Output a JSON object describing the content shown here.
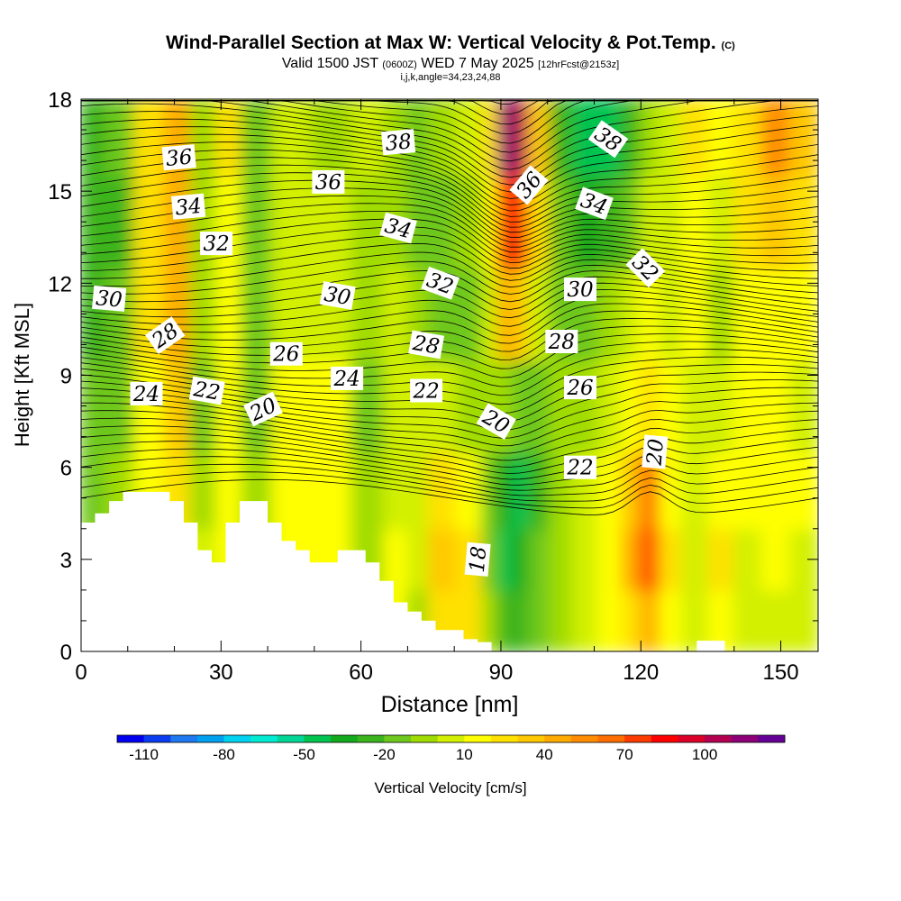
{
  "title": {
    "main": "Wind-Parallel Section at Max W: Vertical Velocity & Pot.Temp.",
    "copyright": "(C)",
    "valid_prefix": "Valid 1500 JST",
    "valid_utc": "(0600Z)",
    "valid_date": "WED 7 May 2025",
    "forecast": "[12hrFcst@2153z]",
    "indices": "i,j,k,angle=34,23,24,88"
  },
  "chart_data": {
    "type": "heatmap",
    "xlabel": "Distance [nm]",
    "ylabel": "Height [Kft MSL]",
    "xlim": [
      0,
      158
    ],
    "ylim": [
      0,
      18
    ],
    "x_ticks": [
      0,
      30,
      60,
      90,
      120,
      150
    ],
    "y_ticks": [
      0,
      3,
      6,
      9,
      12,
      15,
      18
    ],
    "colorbar": {
      "label": "Vertical Velocity [cm/s]",
      "tick_labels": [
        -110,
        -80,
        -50,
        -20,
        10,
        40,
        70,
        100
      ],
      "colors": [
        "#0000f0",
        "#0a3cf0",
        "#1e78f0",
        "#00a0f0",
        "#00d2f0",
        "#00ebd2",
        "#00d796",
        "#00c350",
        "#14aa1e",
        "#3cb41e",
        "#6ec81e",
        "#a0dc00",
        "#d2f000",
        "#ffff00",
        "#ffe100",
        "#ffc800",
        "#ffaa00",
        "#ff8c00",
        "#ff6e00",
        "#ff3c00",
        "#ff0000",
        "#dc0028",
        "#b40050",
        "#8c0078",
        "#640096"
      ]
    },
    "w_field": [
      {
        "x": 3,
        "values": [
          -10,
          -10,
          -15,
          -20,
          -25,
          -30,
          -30
        ]
      },
      {
        "x": 8,
        "values": [
          -5,
          -5,
          -10,
          -15,
          -20,
          -25,
          -20
        ]
      },
      {
        "x": 15,
        "values": [
          5,
          5,
          10,
          15,
          20,
          25,
          25
        ]
      },
      {
        "x": 21,
        "values": [
          5,
          10,
          20,
          30,
          40,
          45,
          40
        ]
      },
      {
        "x": 26,
        "values": [
          0,
          0,
          -10,
          -15,
          -10,
          -10,
          -5
        ]
      },
      {
        "x": 32,
        "values": [
          15,
          15,
          10,
          10,
          10,
          15,
          20
        ]
      },
      {
        "x": 37,
        "values": [
          -5,
          -5,
          -10,
          -15,
          -20,
          -20,
          -15
        ]
      },
      {
        "x": 45,
        "values": [
          5,
          10,
          10,
          10,
          5,
          5,
          5
        ]
      },
      {
        "x": 54,
        "values": [
          10,
          15,
          15,
          10,
          5,
          0,
          -5
        ]
      },
      {
        "x": 62,
        "values": [
          0,
          -5,
          -10,
          -15,
          -10,
          -5,
          0
        ]
      },
      {
        "x": 68,
        "values": [
          10,
          10,
          5,
          5,
          0,
          -5,
          -10
        ]
      },
      {
        "x": 72,
        "values": [
          -5,
          0,
          5,
          0,
          -5,
          -15,
          -20
        ]
      },
      {
        "x": 77,
        "values": [
          20,
          30,
          25,
          5,
          -15,
          -20,
          -10
        ]
      },
      {
        "x": 84,
        "values": [
          20,
          25,
          10,
          -5,
          -20,
          -10,
          0
        ]
      },
      {
        "x": 88,
        "values": [
          -10,
          -20,
          -15,
          -5,
          5,
          10,
          20
        ]
      },
      {
        "x": 91,
        "values": [
          -30,
          -45,
          -40,
          -10,
          40,
          80,
          110
        ]
      },
      {
        "x": 94,
        "values": [
          -25,
          -40,
          -50,
          -20,
          30,
          70,
          100
        ]
      },
      {
        "x": 98,
        "values": [
          -15,
          -20,
          -25,
          -15,
          0,
          20,
          30
        ]
      },
      {
        "x": 103,
        "values": [
          -5,
          -10,
          -10,
          -10,
          -15,
          -20,
          -30
        ]
      },
      {
        "x": 108,
        "values": [
          5,
          5,
          0,
          -5,
          -20,
          -40,
          -50
        ]
      },
      {
        "x": 114,
        "values": [
          10,
          15,
          10,
          5,
          -10,
          -30,
          -45
        ]
      },
      {
        "x": 118,
        "values": [
          20,
          40,
          30,
          10,
          5,
          -15,
          -25
        ]
      },
      {
        "x": 122,
        "values": [
          40,
          70,
          60,
          20,
          10,
          0,
          -10
        ]
      },
      {
        "x": 126,
        "values": [
          15,
          25,
          15,
          10,
          5,
          5,
          5
        ]
      },
      {
        "x": 132,
        "values": [
          5,
          5,
          5,
          5,
          10,
          15,
          20
        ]
      },
      {
        "x": 137,
        "values": [
          15,
          20,
          10,
          0,
          -5,
          5,
          15
        ]
      },
      {
        "x": 143,
        "values": [
          5,
          5,
          10,
          10,
          10,
          20,
          25
        ]
      },
      {
        "x": 149,
        "values": [
          5,
          10,
          15,
          10,
          15,
          35,
          50
        ]
      },
      {
        "x": 155,
        "values": [
          0,
          5,
          10,
          5,
          10,
          20,
          30
        ]
      }
    ],
    "w_field_heights": [
      1,
      3,
      5,
      8,
      11,
      14,
      17
    ],
    "terrain": [
      [
        0,
        4.2
      ],
      [
        3,
        4.2
      ],
      [
        3,
        4.5
      ],
      [
        6,
        4.5
      ],
      [
        6,
        4.9
      ],
      [
        9,
        4.9
      ],
      [
        9,
        5.2
      ],
      [
        19,
        5.2
      ],
      [
        19,
        4.9
      ],
      [
        22,
        4.9
      ],
      [
        22,
        4.2
      ],
      [
        25,
        4.2
      ],
      [
        25,
        3.3
      ],
      [
        28,
        3.3
      ],
      [
        28,
        2.9
      ],
      [
        31,
        2.9
      ],
      [
        31,
        4.2
      ],
      [
        34,
        4.2
      ],
      [
        34,
        4.9
      ],
      [
        40,
        4.9
      ],
      [
        40,
        4.2
      ],
      [
        43,
        4.2
      ],
      [
        43,
        3.6
      ],
      [
        46,
        3.6
      ],
      [
        46,
        3.3
      ],
      [
        49,
        3.3
      ],
      [
        49,
        2.9
      ],
      [
        55,
        2.9
      ],
      [
        55,
        3.3
      ],
      [
        61,
        3.3
      ],
      [
        61,
        2.9
      ],
      [
        64,
        2.9
      ],
      [
        64,
        2.3
      ],
      [
        67,
        2.3
      ],
      [
        67,
        1.6
      ],
      [
        70,
        1.6
      ],
      [
        70,
        1.3
      ],
      [
        73,
        1.3
      ],
      [
        73,
        1.0
      ],
      [
        76,
        1.0
      ],
      [
        76,
        0.7
      ],
      [
        82,
        0.7
      ],
      [
        82,
        0.4
      ],
      [
        85,
        0.4
      ],
      [
        85,
        0.3
      ],
      [
        88,
        0.3
      ],
      [
        88,
        0.0
      ]
    ],
    "terrain_right": [
      [
        132,
        0.0
      ],
      [
        132,
        0.35
      ],
      [
        138,
        0.35
      ],
      [
        138,
        0.0
      ]
    ],
    "theta_labels": [
      {
        "text": "36",
        "x": 21,
        "y": 16.1,
        "angle": -5
      },
      {
        "text": "34",
        "x": 23,
        "y": 14.5,
        "angle": -5
      },
      {
        "text": "32",
        "x": 29,
        "y": 13.3,
        "angle": 0
      },
      {
        "text": "30",
        "x": 6,
        "y": 11.5,
        "angle": 5
      },
      {
        "text": "28",
        "x": 18,
        "y": 10.3,
        "angle": -35
      },
      {
        "text": "24",
        "x": 14,
        "y": 8.4,
        "angle": 0
      },
      {
        "text": "22",
        "x": 27,
        "y": 8.5,
        "angle": 10
      },
      {
        "text": "20",
        "x": 39,
        "y": 7.9,
        "angle": -25
      },
      {
        "text": "26",
        "x": 44,
        "y": 9.7,
        "angle": 0
      },
      {
        "text": "24",
        "x": 57,
        "y": 8.9,
        "angle": 0
      },
      {
        "text": "30",
        "x": 55,
        "y": 11.6,
        "angle": 10
      },
      {
        "text": "36",
        "x": 53,
        "y": 15.3,
        "angle": 0
      },
      {
        "text": "38",
        "x": 68,
        "y": 16.6,
        "angle": -5
      },
      {
        "text": "34",
        "x": 68,
        "y": 13.8,
        "angle": 15
      },
      {
        "text": "32",
        "x": 77,
        "y": 12.0,
        "angle": 20
      },
      {
        "text": "28",
        "x": 74,
        "y": 10.0,
        "angle": 10
      },
      {
        "text": "22",
        "x": 74,
        "y": 8.5,
        "angle": 0
      },
      {
        "text": "20",
        "x": 89,
        "y": 7.5,
        "angle": 30
      },
      {
        "text": "18",
        "x": 85,
        "y": 3.0,
        "angle": -85
      },
      {
        "text": "36",
        "x": 96,
        "y": 15.2,
        "angle": -50
      },
      {
        "text": "38",
        "x": 113,
        "y": 16.7,
        "angle": 35
      },
      {
        "text": "34",
        "x": 110,
        "y": 14.6,
        "angle": 20
      },
      {
        "text": "32",
        "x": 121,
        "y": 12.5,
        "angle": 45
      },
      {
        "text": "30",
        "x": 107,
        "y": 11.8,
        "angle": 0
      },
      {
        "text": "28",
        "x": 103,
        "y": 10.1,
        "angle": 0
      },
      {
        "text": "26",
        "x": 107,
        "y": 8.6,
        "angle": 0
      },
      {
        "text": "22",
        "x": 107,
        "y": 6.0,
        "angle": 0
      },
      {
        "text": "20",
        "x": 123,
        "y": 6.5,
        "angle": -85
      }
    ]
  }
}
